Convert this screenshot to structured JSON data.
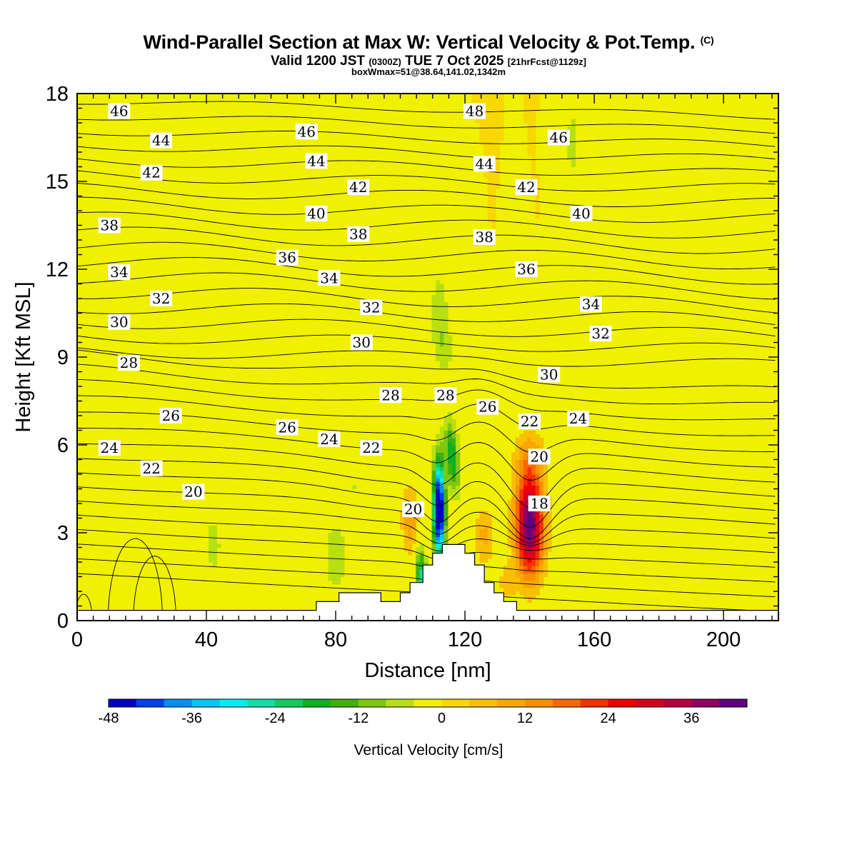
{
  "header": {
    "title_main": "Wind-Parallel Section at Max W: Vertical Velocity & Pot.Temp.",
    "title_mark": "(C)",
    "valid_prefix": "Valid 1200 JST",
    "valid_utc": "(0300Z)",
    "valid_date": "TUE 7 Oct 2025",
    "valid_fcst": "[21hrFcst@1129z]",
    "box_info": "boxWmax=51@38.64,141.02,1342m"
  },
  "chart_data": {
    "type": "contour-section",
    "xlabel": "Distance [nm]",
    "ylabel": "Height [Kft MSL]",
    "xlim": [
      0,
      217
    ],
    "ylim": [
      0,
      18
    ],
    "x_ticks": [
      0,
      40,
      80,
      120,
      160,
      200
    ],
    "y_ticks": [
      0,
      3,
      6,
      9,
      12,
      15,
      18
    ],
    "shading": {
      "variable": "Vertical Velocity",
      "units": "cm/s",
      "levels": [
        -48,
        -44,
        -40,
        -36,
        -32,
        -28,
        -24,
        -20,
        -16,
        -12,
        -8,
        -4,
        0,
        4,
        8,
        12,
        16,
        20,
        24,
        28,
        32,
        36,
        40
      ],
      "colors": [
        "#0000cc",
        "#0040f0",
        "#0090f0",
        "#00c8f0",
        "#00f0f0",
        "#10e0a8",
        "#10cc60",
        "#10b020",
        "#40b010",
        "#80c810",
        "#b8e010",
        "#f0f000",
        "#f8d800",
        "#f8c000",
        "#f8a800",
        "#f89000",
        "#f86800",
        "#f83000",
        "#f00000",
        "#d80020",
        "#b80040",
        "#900060",
        "#600080"
      ],
      "colorbar_labels": [
        "-48",
        "-36",
        "-24",
        "-12",
        "0",
        "12",
        "24",
        "36"
      ],
      "colorbar_title": "Vertical Velocity [cm/s]",
      "features": [
        {
          "kind": "updraft",
          "x": 140,
          "y": 3.3,
          "peak_cm_s": 40
        },
        {
          "kind": "downdraft",
          "x": 112,
          "y": 3.8,
          "peak_cm_s": -48
        }
      ]
    },
    "contours": {
      "variable": "Pot.Temp.",
      "labels": [
        {
          "v": "46",
          "x": 13,
          "y": 17.4
        },
        {
          "v": "44",
          "x": 26,
          "y": 16.4
        },
        {
          "v": "42",
          "x": 23,
          "y": 15.3
        },
        {
          "v": "38",
          "x": 10,
          "y": 13.5
        },
        {
          "v": "34",
          "x": 13,
          "y": 11.9
        },
        {
          "v": "32",
          "x": 26,
          "y": 11.0
        },
        {
          "v": "30",
          "x": 13,
          "y": 10.2
        },
        {
          "v": "28",
          "x": 16,
          "y": 8.8
        },
        {
          "v": "26",
          "x": 29,
          "y": 7.0
        },
        {
          "v": "24",
          "x": 10,
          "y": 5.9
        },
        {
          "v": "22",
          "x": 23,
          "y": 5.2
        },
        {
          "v": "20",
          "x": 36,
          "y": 4.4
        },
        {
          "v": "46",
          "x": 71,
          "y": 16.7
        },
        {
          "v": "44",
          "x": 74,
          "y": 15.7
        },
        {
          "v": "42",
          "x": 87,
          "y": 14.8
        },
        {
          "v": "40",
          "x": 74,
          "y": 13.9
        },
        {
          "v": "38",
          "x": 87,
          "y": 13.2
        },
        {
          "v": "36",
          "x": 65,
          "y": 12.4
        },
        {
          "v": "34",
          "x": 78,
          "y": 11.7
        },
        {
          "v": "32",
          "x": 91,
          "y": 10.7
        },
        {
          "v": "30",
          "x": 88,
          "y": 9.5
        },
        {
          "v": "28",
          "x": 97,
          "y": 7.7
        },
        {
          "v": "26",
          "x": 65,
          "y": 6.6
        },
        {
          "v": "24",
          "x": 78,
          "y": 6.2
        },
        {
          "v": "22",
          "x": 91,
          "y": 5.9
        },
        {
          "v": "20",
          "x": 104,
          "y": 3.8
        },
        {
          "v": "28",
          "x": 114,
          "y": 7.7
        },
        {
          "v": "48",
          "x": 123,
          "y": 17.4
        },
        {
          "v": "44",
          "x": 126,
          "y": 15.6
        },
        {
          "v": "38",
          "x": 126,
          "y": 13.1
        },
        {
          "v": "26",
          "x": 127,
          "y": 7.3
        },
        {
          "v": "42",
          "x": 139,
          "y": 14.8
        },
        {
          "v": "36",
          "x": 139,
          "y": 12.0
        },
        {
          "v": "22",
          "x": 140,
          "y": 6.8
        },
        {
          "v": "20",
          "x": 143,
          "y": 5.6
        },
        {
          "v": "18",
          "x": 143,
          "y": 4.0
        },
        {
          "v": "46",
          "x": 149,
          "y": 16.5
        },
        {
          "v": "40",
          "x": 156,
          "y": 13.9
        },
        {
          "v": "34",
          "x": 159,
          "y": 10.8
        },
        {
          "v": "32",
          "x": 162,
          "y": 9.8
        },
        {
          "v": "30",
          "x": 146,
          "y": 8.4
        },
        {
          "v": "24",
          "x": 155,
          "y": 6.9
        }
      ]
    },
    "terrain": [
      {
        "x0": 0,
        "x1": 74,
        "h": 0.35
      },
      {
        "x0": 74,
        "x1": 81,
        "h": 0.65
      },
      {
        "x0": 81,
        "x1": 94,
        "h": 0.95
      },
      {
        "x0": 94,
        "x1": 100,
        "h": 0.65
      },
      {
        "x0": 100,
        "x1": 103,
        "h": 0.95
      },
      {
        "x0": 103,
        "x1": 107,
        "h": 1.3
      },
      {
        "x0": 107,
        "x1": 110,
        "h": 1.9
      },
      {
        "x0": 110,
        "x1": 113,
        "h": 2.3
      },
      {
        "x0": 113,
        "x1": 120,
        "h": 2.6
      },
      {
        "x0": 120,
        "x1": 123,
        "h": 2.3
      },
      {
        "x0": 123,
        "x1": 126,
        "h": 1.9
      },
      {
        "x0": 126,
        "x1": 129,
        "h": 1.3
      },
      {
        "x0": 129,
        "x1": 132,
        "h": 0.95
      },
      {
        "x0": 132,
        "x1": 136,
        "h": 0.65
      },
      {
        "x0": 136,
        "x1": 217,
        "h": 0.35
      }
    ]
  }
}
